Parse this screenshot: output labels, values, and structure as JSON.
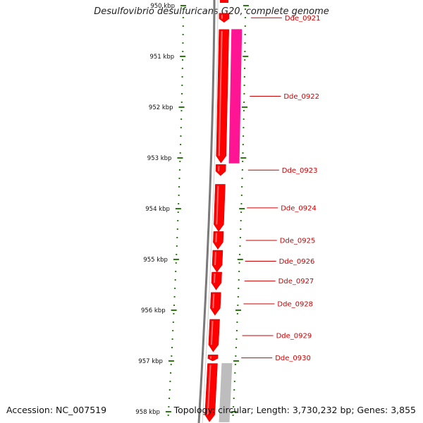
{
  "title": "Desulfovibrio desulfuricans G20, complete genome",
  "accession": "Accession: NC_007519",
  "topology": "Topology: circular; Length: 3,730,232 bp; Genes: 3,855",
  "colors": {
    "backbone": "#7a7a7a",
    "gene_forward": "#ff0000",
    "gene_other": "#ff1493",
    "gene_grey": "#bdbdbd",
    "tick": "#2a7a10",
    "label": "#cc0000"
  },
  "chart_data": {
    "type": "genome-map",
    "unit": "kbp",
    "range_kbp": [
      950,
      958
    ],
    "ticks": [
      {
        "kbp": 950,
        "label": "950 kbp"
      },
      {
        "kbp": 951,
        "label": "951 kbp"
      },
      {
        "kbp": 952,
        "label": "952 kbp"
      },
      {
        "kbp": 953,
        "label": "953 kbp"
      },
      {
        "kbp": 954,
        "label": "954 kbp"
      },
      {
        "kbp": 955,
        "label": "955 kbp"
      },
      {
        "kbp": 956,
        "label": "956 kbp"
      },
      {
        "kbp": 957,
        "label": "957 kbp"
      },
      {
        "kbp": 958,
        "label": "958 kbp"
      }
    ],
    "genes": [
      {
        "name": "Dde_0921",
        "start_kbp": 950.15,
        "end_kbp": 950.33,
        "track": "main",
        "color": "red"
      },
      {
        "name": "Dde_0922",
        "start_kbp": 950.47,
        "end_kbp": 953.1,
        "track": "main",
        "color": "red"
      },
      {
        "name": "",
        "start_kbp": 950.47,
        "end_kbp": 953.1,
        "track": "side",
        "color": "pink"
      },
      {
        "name": "Dde_0923",
        "start_kbp": 953.13,
        "end_kbp": 953.35,
        "track": "main",
        "color": "red"
      },
      {
        "name": "Dde_0924",
        "start_kbp": 953.52,
        "end_kbp": 954.45,
        "track": "main",
        "color": "red"
      },
      {
        "name": "Dde_0925",
        "start_kbp": 954.45,
        "end_kbp": 954.8,
        "track": "main",
        "color": "red"
      },
      {
        "name": "Dde_0926",
        "start_kbp": 954.82,
        "end_kbp": 955.25,
        "track": "main",
        "color": "red"
      },
      {
        "name": "Dde_0927",
        "start_kbp": 955.25,
        "end_kbp": 955.6,
        "track": "main",
        "color": "red"
      },
      {
        "name": "Dde_0928",
        "start_kbp": 955.65,
        "end_kbp": 956.1,
        "track": "main",
        "color": "red"
      },
      {
        "name": "Dde_0929",
        "start_kbp": 956.18,
        "end_kbp": 956.82,
        "track": "main",
        "color": "red"
      },
      {
        "name": "Dde_0930",
        "start_kbp": 956.88,
        "end_kbp": 957.0,
        "track": "main",
        "color": "red"
      },
      {
        "name": "",
        "start_kbp": 957.05,
        "end_kbp": 958.2,
        "track": "main",
        "color": "red"
      },
      {
        "name": "",
        "start_kbp": 957.05,
        "end_kbp": 958.2,
        "track": "side",
        "color": "grey"
      }
    ]
  }
}
